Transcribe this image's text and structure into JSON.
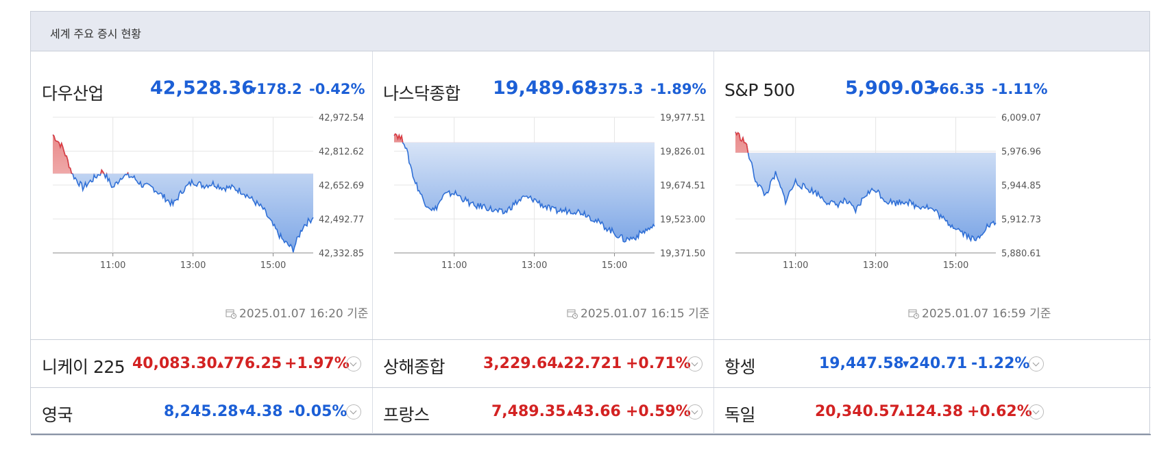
{
  "widget": {
    "title": "세계 주요 증시 현황"
  },
  "colors": {
    "up": "#d32222",
    "down": "#1c5fd6",
    "header_bg": "#e6e9f1"
  },
  "panels": [
    {
      "name": "다우산업",
      "value": "42,528.36",
      "change": "178.2",
      "pct": "-0.42%",
      "direction": "down",
      "timestamp": "2025.01.07 16:20 기준"
    },
    {
      "name": "나스닥종합",
      "value": "19,489.68",
      "change": "375.3",
      "pct": "-1.89%",
      "direction": "down",
      "timestamp": "2025.01.07 16:15 기준"
    },
    {
      "name": "S&P 500",
      "value": "5,909.03",
      "change": "66.35",
      "pct": "-1.11%",
      "direction": "down",
      "timestamp": "2025.01.07 16:59 기준"
    }
  ],
  "rows": [
    [
      {
        "name": "니케이 225",
        "value": "40,083.30",
        "change": "776.25",
        "pct": "+1.97%",
        "direction": "up"
      },
      {
        "name": "상해종합",
        "value": "3,229.64",
        "change": "22.721",
        "pct": "+0.71%",
        "direction": "up"
      },
      {
        "name": "항셍",
        "value": "19,447.58",
        "change": "240.71",
        "pct": "-1.22%",
        "direction": "down"
      }
    ],
    [
      {
        "name": "영국",
        "value": "8,245.28",
        "change": "4.38",
        "pct": "-0.05%",
        "direction": "down"
      },
      {
        "name": "프랑스",
        "value": "7,489.35",
        "change": "43.66",
        "pct": "+0.59%",
        "direction": "up"
      },
      {
        "name": "독일",
        "value": "20,340.57",
        "change": "124.38",
        "pct": "+0.62%",
        "direction": "up"
      }
    ]
  ],
  "chart_data": [
    {
      "type": "area",
      "series": [
        {
          "name": "다우산업",
          "x": [
            "09:30",
            "09:45",
            "10:00",
            "10:15",
            "10:30",
            "10:45",
            "11:00",
            "11:15",
            "11:30",
            "11:45",
            "12:00",
            "12:15",
            "12:30",
            "12:45",
            "13:00",
            "13:15",
            "13:30",
            "13:45",
            "14:00",
            "14:15",
            "14:30",
            "14:45",
            "15:00",
            "15:15",
            "15:30",
            "15:45",
            "16:00"
          ],
          "values": [
            42890,
            42830,
            42700,
            42640,
            42680,
            42720,
            42640,
            42700,
            42690,
            42650,
            42640,
            42600,
            42560,
            42630,
            42670,
            42650,
            42660,
            42640,
            42640,
            42620,
            42580,
            42540,
            42460,
            42390,
            42350,
            42460,
            42500
          ]
        }
      ],
      "prev_close": 42706.56,
      "xticks": [
        "11:00",
        "13:00",
        "15:00"
      ],
      "yticks": [
        "42,972.54",
        "42,812.62",
        "42,652.69",
        "42,492.77",
        "42,332.85"
      ],
      "ylim": [
        42332.85,
        42972.54
      ]
    },
    {
      "type": "area",
      "series": [
        {
          "name": "나스닥종합",
          "x": [
            "09:30",
            "09:45",
            "10:00",
            "10:15",
            "10:30",
            "10:45",
            "11:00",
            "11:15",
            "11:30",
            "11:45",
            "12:00",
            "12:15",
            "12:30",
            "12:45",
            "13:00",
            "13:15",
            "13:30",
            "13:45",
            "14:00",
            "14:15",
            "14:30",
            "14:45",
            "15:00",
            "15:15",
            "15:30",
            "15:45",
            "16:00"
          ],
          "values": [
            19910,
            19870,
            19700,
            19600,
            19560,
            19630,
            19640,
            19610,
            19580,
            19580,
            19560,
            19550,
            19590,
            19620,
            19610,
            19580,
            19560,
            19560,
            19560,
            19550,
            19520,
            19490,
            19460,
            19430,
            19440,
            19470,
            19490
          ]
        }
      ],
      "prev_close": 19864.98,
      "xticks": [
        "11:00",
        "13:00",
        "15:00"
      ],
      "yticks": [
        "19,977.51",
        "19,826.01",
        "19,674.51",
        "19,523.00",
        "19,371.50"
      ],
      "ylim": [
        19371.5,
        19977.51
      ]
    },
    {
      "type": "area",
      "series": [
        {
          "name": "S&P 500",
          "x": [
            "09:30",
            "09:45",
            "10:00",
            "10:15",
            "10:30",
            "10:45",
            "11:00",
            "11:15",
            "11:30",
            "11:45",
            "12:00",
            "12:15",
            "12:30",
            "12:45",
            "13:00",
            "13:15",
            "13:30",
            "13:45",
            "14:00",
            "14:15",
            "14:30",
            "14:45",
            "15:00",
            "15:15",
            "15:30",
            "15:45",
            "16:00"
          ],
          "values": [
            5995,
            5985,
            5950,
            5935,
            5955,
            5930,
            5948,
            5942,
            5938,
            5930,
            5926,
            5930,
            5920,
            5936,
            5941,
            5930,
            5928,
            5930,
            5925,
            5925,
            5920,
            5910,
            5905,
            5898,
            5892,
            5905,
            5909
          ]
        }
      ],
      "prev_close": 5975.38,
      "xticks": [
        "11:00",
        "13:00",
        "15:00"
      ],
      "yticks": [
        "6,009.07",
        "5,976.96",
        "5,944.85",
        "5,912.73",
        "5,880.61"
      ],
      "ylim": [
        5880.61,
        6009.07
      ]
    }
  ]
}
